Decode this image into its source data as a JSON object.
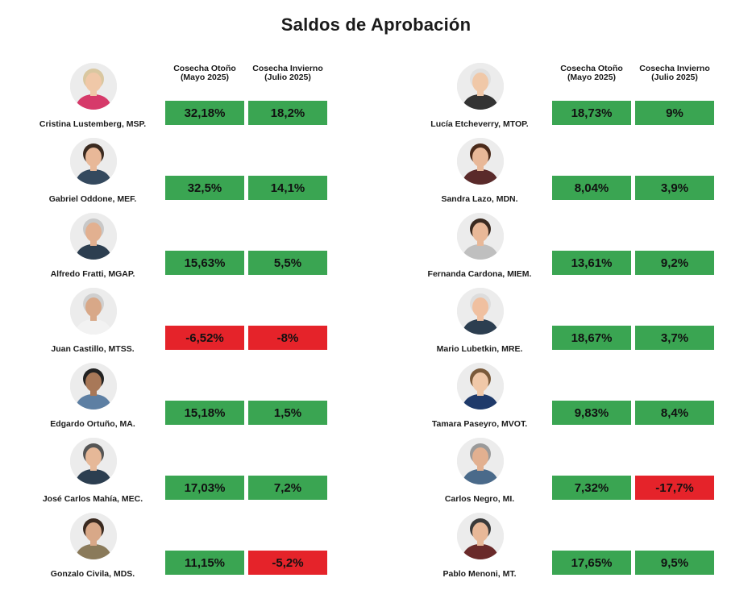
{
  "title": "Saldos de Aprobación",
  "colors": {
    "positive": "#3aa552",
    "negative": "#e5232a"
  },
  "chart_data": {
    "type": "table",
    "title": "Saldos de Aprobación",
    "columns": [
      {
        "label": "Cosecha Otoño",
        "sublabel": "(Mayo 2025)"
      },
      {
        "label": "Cosecha Invierno",
        "sublabel": "(Julio 2025)"
      }
    ],
    "left": [
      {
        "name": "Cristina Lustemberg, MSP.",
        "otono": "32,18%",
        "invierno": "18,2%",
        "otono_value": 32.18,
        "invierno_value": 18.2,
        "avatar": {
          "skin": "#f0c8a8",
          "hair": "#d9c7a0",
          "shirt": "#d63a6a"
        }
      },
      {
        "name": "Gabriel Oddone, MEF.",
        "otono": "32,5%",
        "invierno": "14,1%",
        "otono_value": 32.5,
        "invierno_value": 14.1,
        "avatar": {
          "skin": "#e8b898",
          "hair": "#3a2a20",
          "shirt": "#34495e"
        }
      },
      {
        "name": "Alfredo Fratti, MGAP.",
        "otono": "15,63%",
        "invierno": "5,5%",
        "otono_value": 15.63,
        "invierno_value": 5.5,
        "avatar": {
          "skin": "#e2b090",
          "hair": "#c8c8c8",
          "shirt": "#2c3e50"
        }
      },
      {
        "name": "Juan Castillo, MTSS.",
        "otono": "-6,52%",
        "invierno": "-8%",
        "otono_value": -6.52,
        "invierno_value": -8,
        "avatar": {
          "skin": "#d8a888",
          "hair": "#cfcfcf",
          "shirt": "#f2f2f2"
        }
      },
      {
        "name": "Edgardo Ortuño, MA.",
        "otono": "15,18%",
        "invierno": "1,5%",
        "otono_value": 15.18,
        "invierno_value": 1.5,
        "avatar": {
          "skin": "#a87858",
          "hair": "#222222",
          "shirt": "#5d7fa3"
        }
      },
      {
        "name": "José Carlos Mahía, MEC.",
        "otono": "17,03%",
        "invierno": "7,2%",
        "otono_value": 17.03,
        "invierno_value": 7.2,
        "avatar": {
          "skin": "#e6b898",
          "hair": "#555555",
          "shirt": "#2c3e50"
        }
      },
      {
        "name": "Gonzalo Civila, MDS.",
        "otono": "11,15%",
        "invierno": "-5,2%",
        "otono_value": 11.15,
        "invierno_value": -5.2,
        "avatar": {
          "skin": "#d8a888",
          "hair": "#3a2a20",
          "shirt": "#8a7a5a"
        }
      }
    ],
    "right": [
      {
        "name": "Lucía Etcheverry, MTOP.",
        "otono": "18,73%",
        "invierno": "9%",
        "otono_value": 18.73,
        "invierno_value": 9,
        "avatar": {
          "skin": "#f0c8a8",
          "hair": "#e0e0e0",
          "shirt": "#333333"
        }
      },
      {
        "name": "Sandra Lazo, MDN.",
        "otono": "8,04%",
        "invierno": "3,9%",
        "otono_value": 8.04,
        "invierno_value": 3.9,
        "avatar": {
          "skin": "#e8b898",
          "hair": "#4a2a1a",
          "shirt": "#5a2a2a"
        }
      },
      {
        "name": "Fernanda Cardona, MIEM.",
        "otono": "13,61%",
        "invierno": "9,2%",
        "otono_value": 13.61,
        "invierno_value": 9.2,
        "avatar": {
          "skin": "#e8b898",
          "hair": "#3a2a20",
          "shirt": "#bfbfbf"
        }
      },
      {
        "name": "Mario Lubetkin, MRE.",
        "otono": "18,67%",
        "invierno": "3,7%",
        "otono_value": 18.67,
        "invierno_value": 3.7,
        "avatar": {
          "skin": "#f0c0a0",
          "hair": "#dddddd",
          "shirt": "#2c3e50"
        }
      },
      {
        "name": "Tamara Paseyro, MVOT.",
        "otono": "9,83%",
        "invierno": "8,4%",
        "otono_value": 9.83,
        "invierno_value": 8.4,
        "avatar": {
          "skin": "#f0c8a8",
          "hair": "#7a5a3a",
          "shirt": "#1f3a6a"
        }
      },
      {
        "name": "Carlos Negro, MI.",
        "otono": "7,32%",
        "invierno": "-17,7%",
        "otono_value": 7.32,
        "invierno_value": -17.7,
        "avatar": {
          "skin": "#e2b090",
          "hair": "#9a9a9a",
          "shirt": "#4a6a8a"
        }
      },
      {
        "name": "Pablo Menoni, MT.",
        "otono": "17,65%",
        "invierno": "9,5%",
        "otono_value": 17.65,
        "invierno_value": 9.5,
        "avatar": {
          "skin": "#e8b898",
          "hair": "#3a3a3a",
          "shirt": "#6a2a2a"
        }
      }
    ]
  }
}
